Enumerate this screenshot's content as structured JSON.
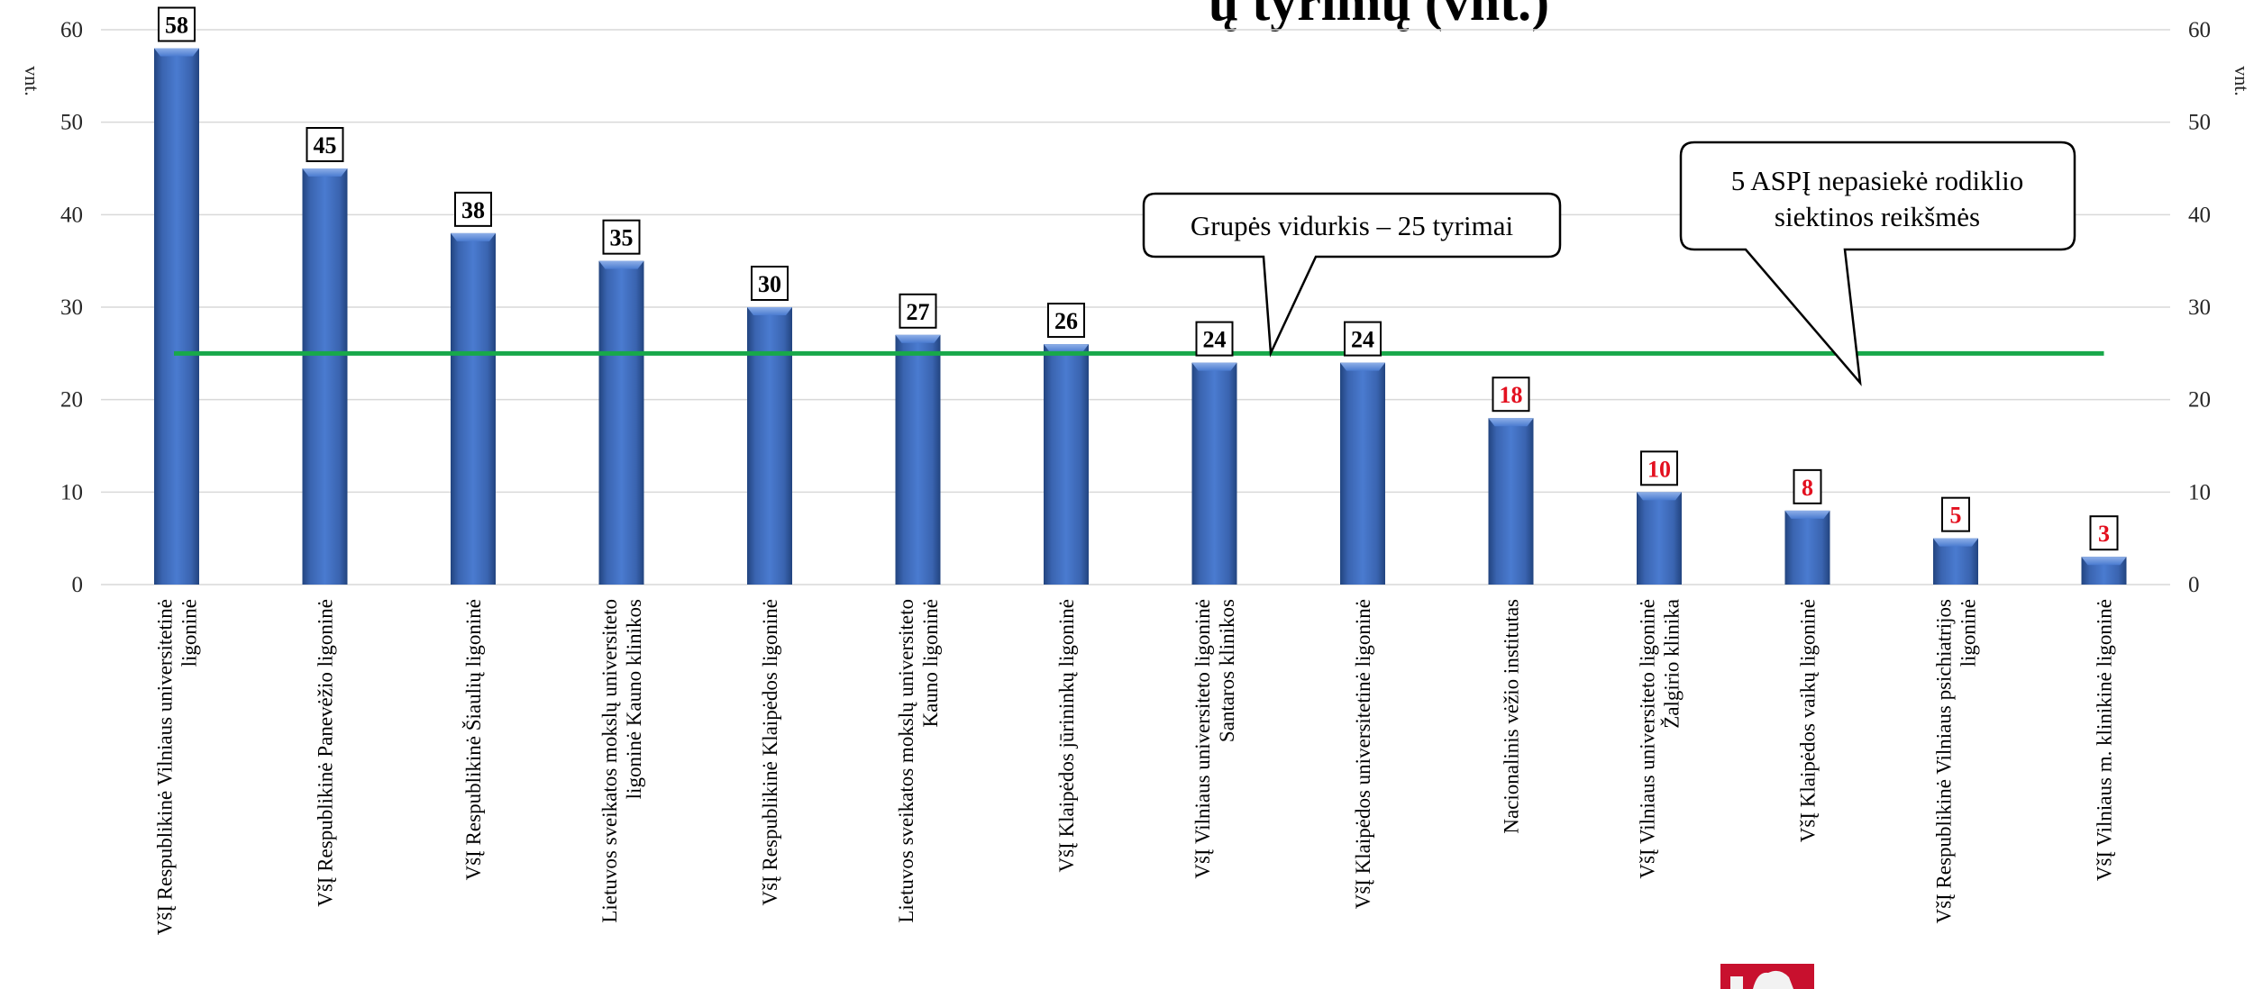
{
  "chart_data": {
    "type": "bar",
    "title_fragment": "ų  tyrimų (vnt.)",
    "ylabel_left": "vnt.",
    "ylabel_right": "vnt.",
    "ylim": [
      0,
      60
    ],
    "yticks": [
      0,
      10,
      20,
      30,
      40,
      50,
      60
    ],
    "grid": true,
    "categories": [
      [
        "VšĮ Respublikinė Vilniaus universitetinė",
        "ligoninė"
      ],
      [
        "VšĮ Respublikinė Panevėžio ligoninė"
      ],
      [
        "VšĮ Respublikinė Šiaulių ligoninė"
      ],
      [
        "Lietuvos sveikatos mokslų universiteto",
        "ligoninė Kauno klinikos"
      ],
      [
        "VšĮ Respublikinė Klaipėdos ligoninė"
      ],
      [
        "Lietuvos sveikatos mokslų universiteto",
        "Kauno ligoninė"
      ],
      [
        "VšĮ Klaipėdos jūrininkų ligoninė"
      ],
      [
        "VšĮ Vilniaus universiteto ligoninė",
        "Santaros klinikos"
      ],
      [
        "VšĮ Klaipėdos universitetinė ligoninė"
      ],
      [
        "Nacionalinis vėžio institutas"
      ],
      [
        "VšĮ Vilniaus universiteto ligoninė",
        "Žalgirio klinika"
      ],
      [
        "VšĮ Klaipėdos vaikų ligoninė"
      ],
      [
        "VšĮ Respublikinė Vilniaus psichiatrijos",
        "ligoninė"
      ],
      [
        "VšĮ Vilniaus m. klinikinė ligoninė"
      ]
    ],
    "values": [
      58,
      45,
      38,
      35,
      30,
      27,
      26,
      24,
      24,
      18,
      10,
      8,
      5,
      3
    ],
    "label_colors": [
      "#000000",
      "#000000",
      "#000000",
      "#000000",
      "#000000",
      "#000000",
      "#000000",
      "#000000",
      "#000000",
      "#e3101f",
      "#e3101f",
      "#e3101f",
      "#e3101f",
      "#e3101f"
    ],
    "bar_color": "#4472c4",
    "average": {
      "value": 25,
      "color": "#18a84a"
    },
    "annotations": [
      {
        "lines": [
          "Grupės vidurkis – 25 tyrimai"
        ]
      },
      {
        "lines": [
          "5 ASPĮ nepasiekė rodiklio",
          "siektinos reikšmės"
        ]
      }
    ],
    "emblem_color": "#c8102e"
  }
}
